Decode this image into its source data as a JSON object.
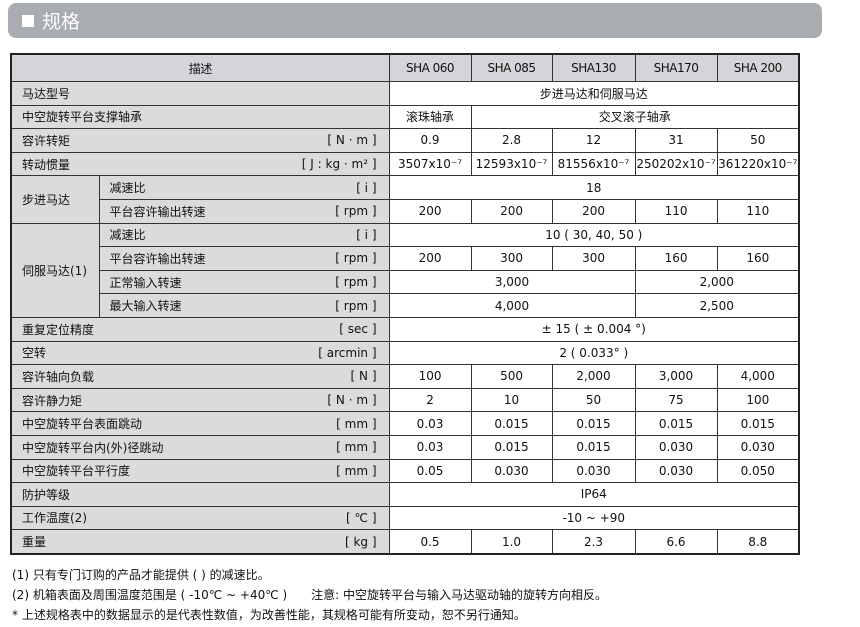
{
  "title": "规格",
  "header": {
    "desc": "描述",
    "models": [
      "SHA 060",
      "SHA 085",
      "SHA130",
      "SHA170",
      "SHA 200"
    ]
  },
  "groups": {
    "step": "步进马达",
    "servo": "伺服马达(1)"
  },
  "rows": [
    {
      "label": "马达型号",
      "unit": "",
      "cells": [
        {
          "v": "步进马达和伺服马达",
          "span": 5
        }
      ]
    },
    {
      "label": "中空旋转平台支撑轴承",
      "unit": "",
      "cells": [
        {
          "v": "滚珠轴承",
          "span": 1
        },
        {
          "v": "交叉滚子轴承",
          "span": 4
        }
      ]
    },
    {
      "label": "容许转矩",
      "unit": "[ N · m ]",
      "cells": [
        {
          "v": "0.9"
        },
        {
          "v": "2.8"
        },
        {
          "v": "12"
        },
        {
          "v": "31"
        },
        {
          "v": "50"
        }
      ]
    },
    {
      "label": "转动惯量",
      "unit": "[ J : kg · m² ]",
      "cells": [
        {
          "v": "3507x10⁻⁷"
        },
        {
          "v": "12593x10⁻⁷"
        },
        {
          "v": "81556x10⁻⁷"
        },
        {
          "v": "250202x10⁻⁷"
        },
        {
          "v": "361220x10⁻⁷"
        }
      ]
    },
    {
      "group": "step",
      "groupRows": 2,
      "label": "减速比",
      "unit": "[ i ]",
      "cells": [
        {
          "v": "18",
          "span": 5
        }
      ]
    },
    {
      "inGroup": true,
      "label": "平台容许输出转速",
      "unit": "[ rpm ]",
      "cells": [
        {
          "v": "200"
        },
        {
          "v": "200"
        },
        {
          "v": "200"
        },
        {
          "v": "110"
        },
        {
          "v": "110"
        }
      ]
    },
    {
      "group": "servo",
      "groupRows": 4,
      "label": "减速比",
      "unit": "[ i ]",
      "cells": [
        {
          "v": "10 ( 30, 40, 50 )",
          "span": 5
        }
      ]
    },
    {
      "inGroup": true,
      "label": "平台容许输出转速",
      "unit": "[ rpm ]",
      "cells": [
        {
          "v": "200"
        },
        {
          "v": "300"
        },
        {
          "v": "300"
        },
        {
          "v": "160"
        },
        {
          "v": "160"
        }
      ]
    },
    {
      "inGroup": true,
      "label": "正常输入转速",
      "unit": "[ rpm ]",
      "cells": [
        {
          "v": "3,000",
          "span": 3
        },
        {
          "v": "2,000",
          "span": 2
        }
      ]
    },
    {
      "inGroup": true,
      "label": "最大输入转速",
      "unit": "[ rpm ]",
      "cells": [
        {
          "v": "4,000",
          "span": 3
        },
        {
          "v": "2,500",
          "span": 2
        }
      ]
    },
    {
      "label": "重复定位精度",
      "unit": "[ sec ]",
      "cells": [
        {
          "v": "± 15 ( ± 0.004 °)",
          "span": 5
        }
      ]
    },
    {
      "label": "空转",
      "unit": "[ arcmin ]",
      "cells": [
        {
          "v": "2 ( 0.033° )",
          "span": 5
        }
      ]
    },
    {
      "label": "容许轴向负载",
      "unit": "[ N ]",
      "cells": [
        {
          "v": "100"
        },
        {
          "v": "500"
        },
        {
          "v": "2,000"
        },
        {
          "v": "3,000"
        },
        {
          "v": "4,000"
        }
      ]
    },
    {
      "label": "容许静力矩",
      "unit": "[ N · m ]",
      "cells": [
        {
          "v": "2"
        },
        {
          "v": "10"
        },
        {
          "v": "50"
        },
        {
          "v": "75"
        },
        {
          "v": "100"
        }
      ]
    },
    {
      "label": "中空旋转平台表面跳动",
      "unit": "[ mm ]",
      "cells": [
        {
          "v": "0.03"
        },
        {
          "v": "0.015"
        },
        {
          "v": "0.015"
        },
        {
          "v": "0.015"
        },
        {
          "v": "0.015"
        }
      ]
    },
    {
      "label": "中空旋转平台内(外)径跳动",
      "unit": "[ mm ]",
      "cells": [
        {
          "v": "0.03"
        },
        {
          "v": "0.015"
        },
        {
          "v": "0.015"
        },
        {
          "v": "0.030"
        },
        {
          "v": "0.030"
        }
      ]
    },
    {
      "label": "中空旋转平台平行度",
      "unit": "[ mm ]",
      "cells": [
        {
          "v": "0.05"
        },
        {
          "v": "0.030"
        },
        {
          "v": "0.030"
        },
        {
          "v": "0.030"
        },
        {
          "v": "0.050"
        }
      ]
    },
    {
      "label": "防护等级",
      "unit": "",
      "cells": [
        {
          "v": "IP64",
          "span": 5
        }
      ]
    },
    {
      "label": "工作温度(2)",
      "unit": "[ ℃ ]",
      "cells": [
        {
          "v": "-10 ~ +90",
          "span": 5
        }
      ]
    },
    {
      "label": "重量",
      "unit": "[ kg ]",
      "cells": [
        {
          "v": "0.5"
        },
        {
          "v": "1.0"
        },
        {
          "v": "2.3"
        },
        {
          "v": "6.6"
        },
        {
          "v": "8.8"
        }
      ]
    }
  ],
  "notes": [
    "(1) 只有专门订购的产品才能提供 ( ) 的减速比。",
    "(2) 机箱表面及周围温度范围是 ( -10℃ ~ +40℃ )　　注意: 中空旋转平台与输入马达驱动轴的旋转方向相反。",
    "* 上述规格表中的数据显示的是代表性数值，为改善性能，其规格可能有所变动，恕不另行通知。"
  ]
}
